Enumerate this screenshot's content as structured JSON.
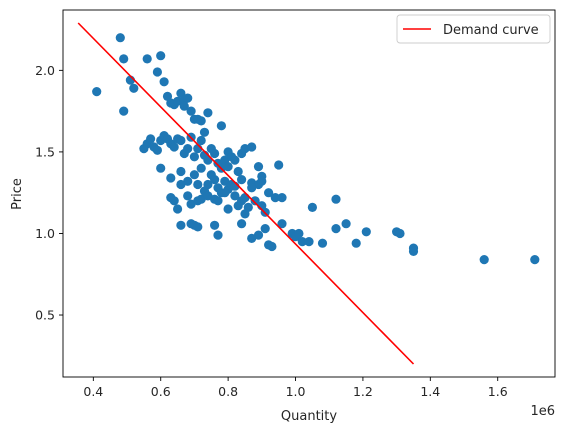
{
  "chart_data": {
    "type": "scatter",
    "title": "",
    "xlabel": "Quantity",
    "ylabel": "Price",
    "x_offset_label": "1e6",
    "xlim": [
      0.31,
      1.77
    ],
    "ylim": [
      0.12,
      2.37
    ],
    "xticks": [
      0.4,
      0.6,
      0.8,
      1.0,
      1.2,
      1.4,
      1.6
    ],
    "xtick_labels": [
      "0.4",
      "0.6",
      "0.8",
      "1.0",
      "1.2",
      "1.4",
      "1.6"
    ],
    "yticks": [
      0.5,
      1.0,
      1.5,
      2.0
    ],
    "ytick_labels": [
      "0.5",
      "1.0",
      "1.5",
      "2.0"
    ],
    "grid": false,
    "legend_position": "top-right",
    "colors": {
      "scatter": "#1f77b4",
      "line": "#ff0000",
      "axis": "#000000"
    },
    "series": [
      {
        "kind": "scatter",
        "points": [
          [
            0.41,
            1.87
          ],
          [
            0.48,
            2.2
          ],
          [
            0.49,
            2.07
          ],
          [
            0.49,
            1.75
          ],
          [
            0.51,
            1.94
          ],
          [
            0.52,
            1.89
          ],
          [
            0.56,
            2.07
          ],
          [
            0.59,
            1.99
          ],
          [
            0.6,
            2.09
          ],
          [
            0.61,
            1.93
          ],
          [
            0.62,
            1.84
          ],
          [
            0.63,
            1.8
          ],
          [
            0.64,
            1.79
          ],
          [
            0.65,
            1.81
          ],
          [
            0.66,
            1.86
          ],
          [
            0.67,
            1.82
          ],
          [
            0.68,
            1.83
          ],
          [
            0.67,
            1.78
          ],
          [
            0.69,
            1.75
          ],
          [
            0.7,
            1.7
          ],
          [
            0.71,
            1.7
          ],
          [
            0.72,
            1.69
          ],
          [
            0.74,
            1.74
          ],
          [
            0.78,
            1.66
          ],
          [
            0.55,
            1.52
          ],
          [
            0.56,
            1.55
          ],
          [
            0.57,
            1.58
          ],
          [
            0.58,
            1.53
          ],
          [
            0.59,
            1.51
          ],
          [
            0.6,
            1.57
          ],
          [
            0.61,
            1.6
          ],
          [
            0.62,
            1.58
          ],
          [
            0.63,
            1.55
          ],
          [
            0.64,
            1.53
          ],
          [
            0.65,
            1.58
          ],
          [
            0.66,
            1.57
          ],
          [
            0.67,
            1.49
          ],
          [
            0.68,
            1.52
          ],
          [
            0.69,
            1.59
          ],
          [
            0.7,
            1.47
          ],
          [
            0.71,
            1.52
          ],
          [
            0.72,
            1.57
          ],
          [
            0.73,
            1.48
          ],
          [
            0.73,
            1.62
          ],
          [
            0.74,
            1.45
          ],
          [
            0.75,
            1.52
          ],
          [
            0.76,
            1.49
          ],
          [
            0.77,
            1.43
          ],
          [
            0.78,
            1.4
          ],
          [
            0.79,
            1.45
          ],
          [
            0.8,
            1.5
          ],
          [
            0.81,
            1.47
          ],
          [
            0.82,
            1.45
          ],
          [
            0.84,
            1.49
          ],
          [
            0.85,
            1.52
          ],
          [
            0.87,
            1.53
          ],
          [
            0.89,
            1.41
          ],
          [
            0.9,
            1.35
          ],
          [
            0.95,
            1.42
          ],
          [
            0.8,
            1.41
          ],
          [
            0.6,
            1.4
          ],
          [
            0.63,
            1.34
          ],
          [
            0.66,
            1.38
          ],
          [
            0.68,
            1.32
          ],
          [
            0.7,
            1.36
          ],
          [
            0.71,
            1.3
          ],
          [
            0.72,
            1.4
          ],
          [
            0.73,
            1.26
          ],
          [
            0.74,
            1.3
          ],
          [
            0.75,
            1.36
          ],
          [
            0.76,
            1.33
          ],
          [
            0.77,
            1.28
          ],
          [
            0.78,
            1.25
          ],
          [
            0.79,
            1.32
          ],
          [
            0.8,
            1.27
          ],
          [
            0.81,
            1.3
          ],
          [
            0.82,
            1.29
          ],
          [
            0.83,
            1.38
          ],
          [
            0.84,
            1.33
          ],
          [
            0.85,
            1.22
          ],
          [
            0.87,
            1.31
          ],
          [
            0.89,
            1.3
          ],
          [
            0.9,
            1.32
          ],
          [
            0.92,
            1.25
          ],
          [
            0.63,
            1.22
          ],
          [
            0.64,
            1.2
          ],
          [
            0.65,
            1.15
          ],
          [
            0.66,
            1.3
          ],
          [
            0.68,
            1.23
          ],
          [
            0.69,
            1.18
          ],
          [
            0.71,
            1.2
          ],
          [
            0.72,
            1.21
          ],
          [
            0.74,
            1.23
          ],
          [
            0.76,
            1.21
          ],
          [
            0.77,
            1.2
          ],
          [
            0.79,
            1.25
          ],
          [
            0.8,
            1.15
          ],
          [
            0.82,
            1.23
          ],
          [
            0.83,
            1.17
          ],
          [
            0.84,
            1.2
          ],
          [
            0.85,
            1.12
          ],
          [
            0.86,
            1.16
          ],
          [
            0.87,
            1.28
          ],
          [
            0.88,
            1.2
          ],
          [
            0.9,
            1.17
          ],
          [
            0.91,
            1.13
          ],
          [
            0.94,
            1.22
          ],
          [
            0.96,
            1.22
          ],
          [
            0.66,
            1.05
          ],
          [
            0.69,
            1.06
          ],
          [
            0.7,
            1.05
          ],
          [
            0.71,
            1.04
          ],
          [
            0.76,
            1.05
          ],
          [
            0.77,
            0.99
          ],
          [
            0.84,
            1.06
          ],
          [
            0.87,
            0.97
          ],
          [
            0.89,
            0.99
          ],
          [
            0.91,
            1.03
          ],
          [
            0.92,
            0.93
          ],
          [
            0.93,
            0.92
          ],
          [
            0.96,
            1.06
          ],
          [
            0.99,
            1.0
          ],
          [
            1.0,
            0.98
          ],
          [
            1.01,
            1.0
          ],
          [
            1.02,
            0.95
          ],
          [
            1.04,
            0.95
          ],
          [
            1.05,
            1.16
          ],
          [
            1.08,
            0.94
          ],
          [
            1.12,
            1.03
          ],
          [
            1.12,
            1.21
          ],
          [
            1.15,
            1.06
          ],
          [
            1.18,
            0.94
          ],
          [
            1.21,
            1.01
          ],
          [
            1.3,
            1.01
          ],
          [
            1.31,
            1.0
          ],
          [
            1.35,
            0.91
          ],
          [
            1.35,
            0.89
          ],
          [
            1.56,
            0.84
          ],
          [
            1.71,
            0.84
          ]
        ]
      },
      {
        "kind": "line",
        "name": "Demand curve",
        "points": [
          [
            0.355,
            2.29
          ],
          [
            1.35,
            0.2
          ]
        ]
      }
    ]
  }
}
